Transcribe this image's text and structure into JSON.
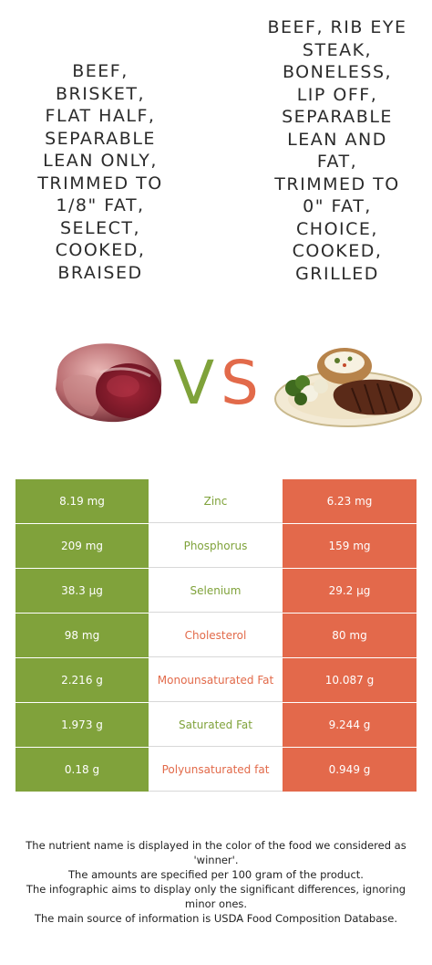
{
  "left_food": {
    "title": "BEEF,\nBRISKET,\nFLAT HALF,\nSEPARABLE\nLEAN ONLY,\nTRIMMED TO\n1/8\" FAT,\nSELECT,\nCOOKED,\nBRAISED",
    "color": "#80a23b",
    "image": "brisket-meat-image"
  },
  "right_food": {
    "title": "BEEF, RIB EYE\nSTEAK,\nBONELESS,\nLIP OFF,\nSEPARABLE\nLEAN AND\nFAT,\nTRIMMED TO\n0\" FAT,\nCHOICE,\nCOOKED,\nGRILLED",
    "color": "#e3694b",
    "image": "steak-plate-image"
  },
  "vs": {
    "v": "V",
    "s": "S"
  },
  "rows": [
    {
      "left": "8.19 mg",
      "nutrient": "Zinc",
      "right": "6.23 mg",
      "winner": "left"
    },
    {
      "left": "209 mg",
      "nutrient": "Phosphorus",
      "right": "159 mg",
      "winner": "left"
    },
    {
      "left": "38.3 µg",
      "nutrient": "Selenium",
      "right": "29.2 µg",
      "winner": "left"
    },
    {
      "left": "98 mg",
      "nutrient": "Cholesterol",
      "right": "80 mg",
      "winner": "right"
    },
    {
      "left": "2.216 g",
      "nutrient": "Monounsaturated Fat",
      "right": "10.087 g",
      "winner": "right"
    },
    {
      "left": "1.973 g",
      "nutrient": "Saturated Fat",
      "right": "9.244 g",
      "winner": "left"
    },
    {
      "left": "0.18 g",
      "nutrient": "Polyunsaturated fat",
      "right": "0.949 g",
      "winner": "right"
    }
  ],
  "footer": {
    "line1": "The nutrient name is displayed in the color of the food we considered as 'winner'.",
    "line2": "The amounts are specified per 100 gram of the product.",
    "line3": "The infographic aims to display only the significant differences, ignoring minor ones.",
    "line4": "The main source of information is USDA Food Composition Database."
  }
}
